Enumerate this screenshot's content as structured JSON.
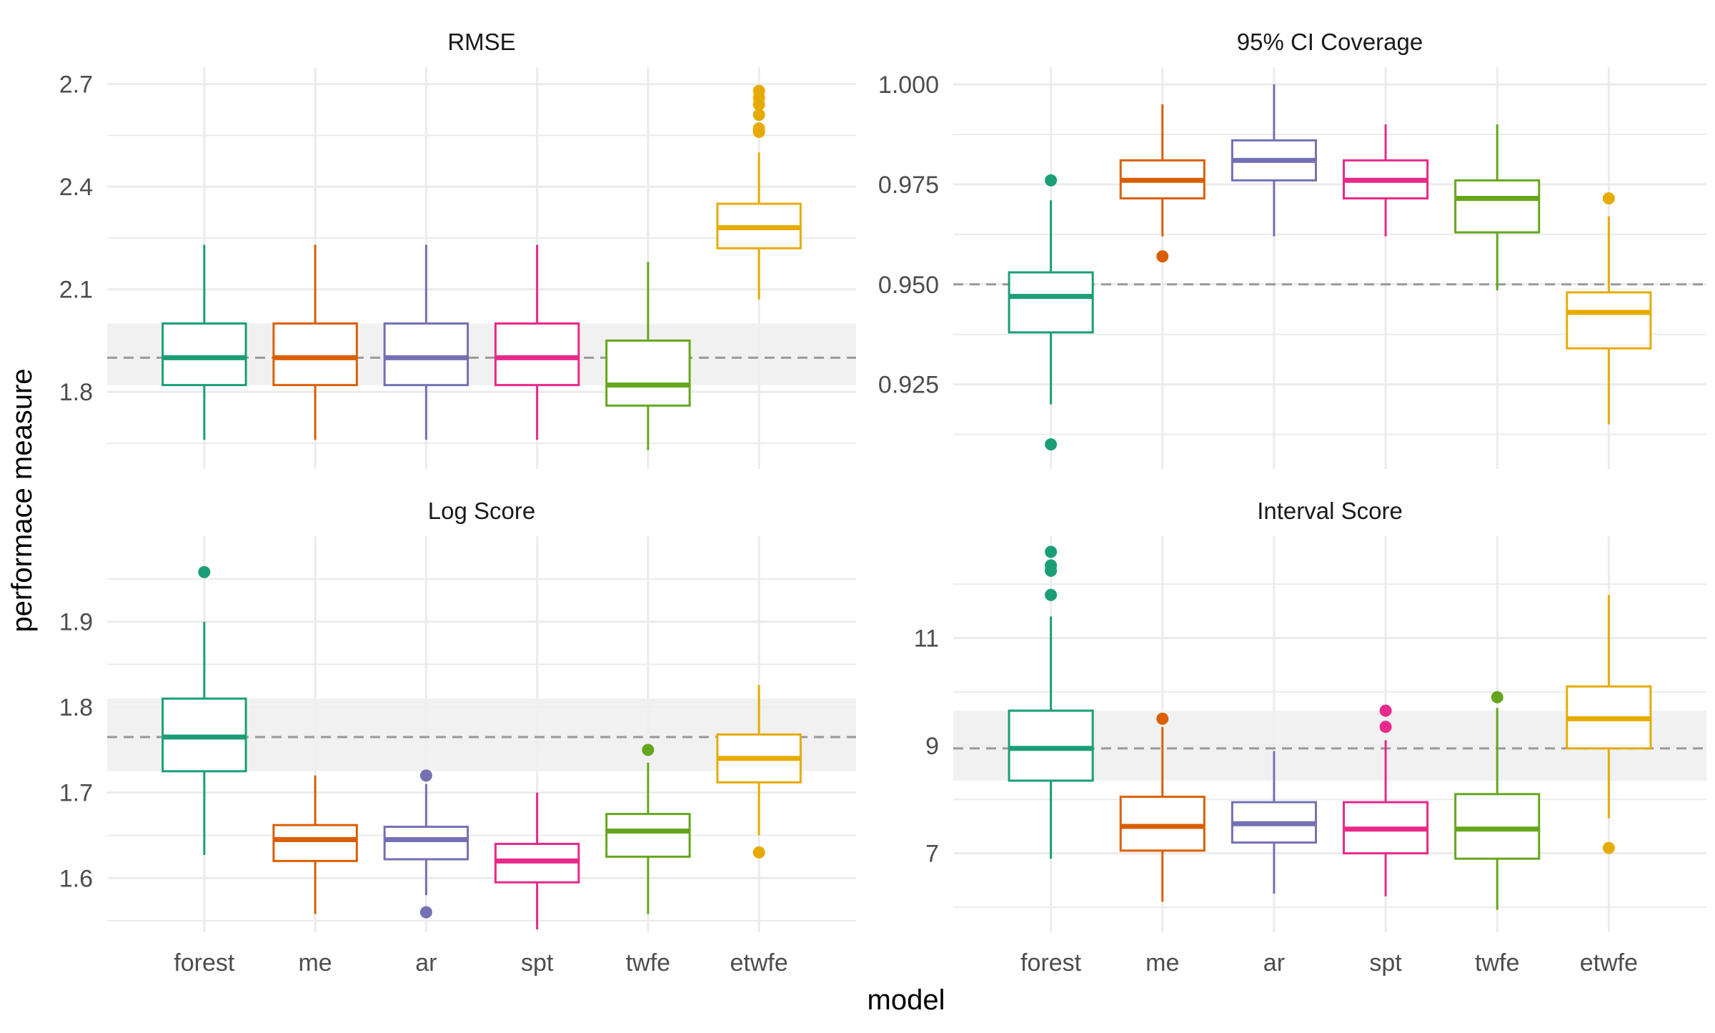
{
  "x_title": "model",
  "y_title": "performace measure",
  "colors": {
    "forest": "#1B9E77",
    "me": "#D95F02",
    "ar": "#7570B3",
    "spt": "#E7298A",
    "twfe": "#66A61E",
    "etwfe": "#E6AB02",
    "grid": "#EBEBEB",
    "band": "#EFEFEF",
    "refline": "#999999"
  },
  "chart_data": [
    {
      "type": "boxplot",
      "title": "RMSE",
      "categories": [
        "forest",
        "me",
        "ar",
        "spt",
        "twfe",
        "etwfe"
      ],
      "show_x_ticks": false,
      "ylim": [
        1.65,
        2.72
      ],
      "yticks": [
        "1.8",
        "2.1",
        "2.4",
        "2.7"
      ],
      "grid": true,
      "reference": {
        "value": 1.9,
        "band": [
          1.82,
          2.0
        ]
      },
      "boxes": [
        {
          "model": "forest",
          "whisker_low": 1.66,
          "q1": 1.82,
          "median": 1.9,
          "q3": 2.0,
          "whisker_high": 2.23,
          "outliers": []
        },
        {
          "model": "me",
          "whisker_low": 1.66,
          "q1": 1.82,
          "median": 1.9,
          "q3": 2.0,
          "whisker_high": 2.23,
          "outliers": []
        },
        {
          "model": "ar",
          "whisker_low": 1.66,
          "q1": 1.82,
          "median": 1.9,
          "q3": 2.0,
          "whisker_high": 2.23,
          "outliers": []
        },
        {
          "model": "spt",
          "whisker_low": 1.66,
          "q1": 1.82,
          "median": 1.9,
          "q3": 2.0,
          "whisker_high": 2.23,
          "outliers": []
        },
        {
          "model": "twfe",
          "whisker_low": 1.63,
          "q1": 1.76,
          "median": 1.82,
          "q3": 1.95,
          "whisker_high": 2.18,
          "outliers": []
        },
        {
          "model": "etwfe",
          "whisker_low": 2.07,
          "q1": 2.22,
          "median": 2.28,
          "q3": 2.35,
          "whisker_high": 2.5,
          "outliers": [
            2.56,
            2.57,
            2.61,
            2.64,
            2.66,
            2.68
          ]
        }
      ]
    },
    {
      "type": "boxplot",
      "title": "95% CI Coverage",
      "categories": [
        "forest",
        "me",
        "ar",
        "spt",
        "twfe",
        "etwfe"
      ],
      "show_x_ticks": false,
      "ylim": [
        0.9085,
        1.0
      ],
      "yticks": [
        "0.925",
        "0.950",
        "0.975",
        "1.000"
      ],
      "grid": true,
      "reference": {
        "value": 0.95,
        "band": null
      },
      "boxes": [
        {
          "model": "forest",
          "whisker_low": 0.92,
          "q1": 0.938,
          "median": 0.947,
          "q3": 0.953,
          "whisker_high": 0.971,
          "outliers": [
            0.976,
            0.91
          ]
        },
        {
          "model": "me",
          "whisker_low": 0.962,
          "q1": 0.9715,
          "median": 0.976,
          "q3": 0.981,
          "whisker_high": 0.995,
          "outliers": [
            0.957
          ]
        },
        {
          "model": "ar",
          "whisker_low": 0.962,
          "q1": 0.976,
          "median": 0.981,
          "q3": 0.986,
          "whisker_high": 1.0,
          "outliers": []
        },
        {
          "model": "spt",
          "whisker_low": 0.962,
          "q1": 0.9715,
          "median": 0.976,
          "q3": 0.981,
          "whisker_high": 0.99,
          "outliers": []
        },
        {
          "model": "twfe",
          "whisker_low": 0.9485,
          "q1": 0.963,
          "median": 0.9715,
          "q3": 0.976,
          "whisker_high": 0.99,
          "outliers": []
        },
        {
          "model": "etwfe",
          "whisker_low": 0.915,
          "q1": 0.934,
          "median": 0.943,
          "q3": 0.948,
          "whisker_high": 0.967,
          "outliers": [
            0.9715
          ]
        }
      ]
    },
    {
      "type": "boxplot",
      "title": "Log Score",
      "categories": [
        "forest",
        "me",
        "ar",
        "spt",
        "twfe",
        "etwfe"
      ],
      "show_x_ticks": true,
      "ylim": [
        1.54,
        1.98
      ],
      "yticks": [
        "1.6",
        "1.7",
        "1.8",
        "1.9"
      ],
      "grid": true,
      "reference": {
        "value": 1.765,
        "band": [
          1.725,
          1.81
        ]
      },
      "boxes": [
        {
          "model": "forest",
          "whisker_low": 1.627,
          "q1": 1.725,
          "median": 1.765,
          "q3": 1.81,
          "whisker_high": 1.9,
          "outliers": [
            1.958
          ]
        },
        {
          "model": "me",
          "whisker_low": 1.558,
          "q1": 1.62,
          "median": 1.645,
          "q3": 1.662,
          "whisker_high": 1.72,
          "outliers": []
        },
        {
          "model": "ar",
          "whisker_low": 1.58,
          "q1": 1.622,
          "median": 1.645,
          "q3": 1.66,
          "whisker_high": 1.71,
          "outliers": [
            1.72,
            1.56
          ]
        },
        {
          "model": "spt",
          "whisker_low": 1.54,
          "q1": 1.595,
          "median": 1.62,
          "q3": 1.64,
          "whisker_high": 1.7,
          "outliers": []
        },
        {
          "model": "twfe",
          "whisker_low": 1.558,
          "q1": 1.625,
          "median": 1.655,
          "q3": 1.675,
          "whisker_high": 1.735,
          "outliers": [
            1.75
          ]
        },
        {
          "model": "etwfe",
          "whisker_low": 1.65,
          "q1": 1.712,
          "median": 1.74,
          "q3": 1.768,
          "whisker_high": 1.826,
          "outliers": [
            1.63
          ]
        }
      ]
    },
    {
      "type": "boxplot",
      "title": "Interval Score",
      "categories": [
        "forest",
        "me",
        "ar",
        "spt",
        "twfe",
        "etwfe"
      ],
      "show_x_ticks": true,
      "ylim": [
        5.8,
        12.6
      ],
      "yticks": [
        "7",
        "9",
        "11"
      ],
      "grid": true,
      "reference": {
        "value": 8.95,
        "band": [
          8.35,
          9.65
        ]
      },
      "boxes": [
        {
          "model": "forest",
          "whisker_low": 6.9,
          "q1": 8.35,
          "median": 8.95,
          "q3": 9.65,
          "whisker_high": 11.4,
          "outliers": [
            11.8,
            12.25,
            12.35,
            12.6
          ]
        },
        {
          "model": "me",
          "whisker_low": 6.1,
          "q1": 7.05,
          "median": 7.5,
          "q3": 8.05,
          "whisker_high": 9.35,
          "outliers": [
            9.5
          ]
        },
        {
          "model": "ar",
          "whisker_low": 6.25,
          "q1": 7.2,
          "median": 7.55,
          "q3": 7.95,
          "whisker_high": 8.9,
          "outliers": []
        },
        {
          "model": "spt",
          "whisker_low": 6.2,
          "q1": 7.0,
          "median": 7.45,
          "q3": 7.95,
          "whisker_high": 9.1,
          "outliers": [
            9.35,
            9.65
          ]
        },
        {
          "model": "twfe",
          "whisker_low": 5.95,
          "q1": 6.9,
          "median": 7.45,
          "q3": 8.1,
          "whisker_high": 9.7,
          "outliers": [
            9.9
          ]
        },
        {
          "model": "etwfe",
          "whisker_low": 7.65,
          "q1": 8.95,
          "median": 9.5,
          "q3": 10.1,
          "whisker_high": 11.8,
          "outliers": [
            7.1
          ]
        }
      ]
    }
  ]
}
